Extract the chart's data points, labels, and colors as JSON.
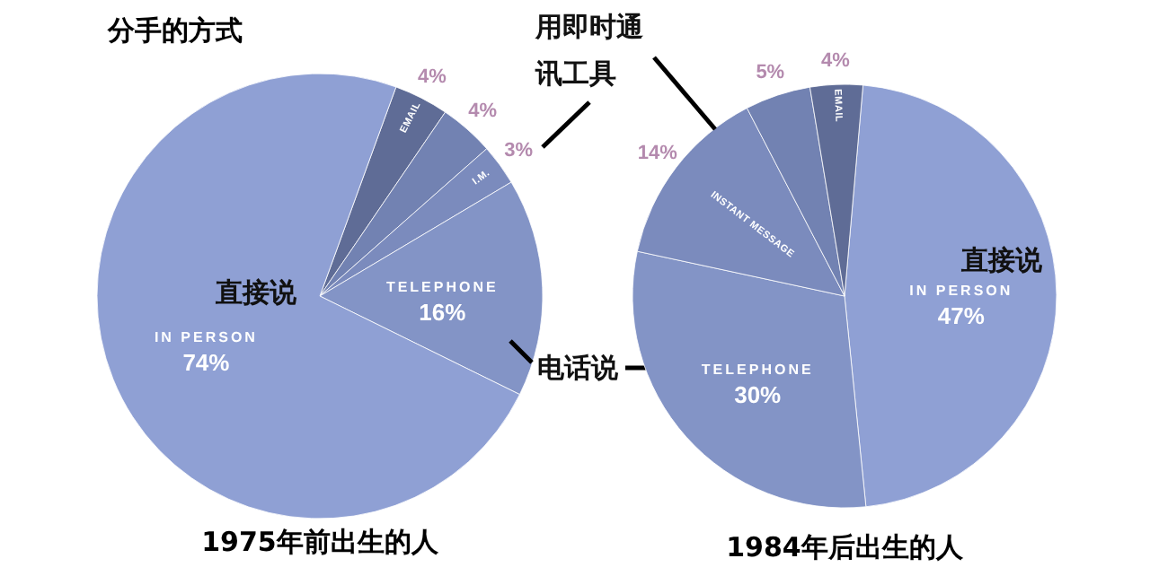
{
  "chart_data": [
    {
      "type": "pie",
      "title": "分手的方式",
      "xlabel": "1975年前出生的人",
      "categories": [
        "EMAIL",
        null,
        "I.M.",
        "TELEPHONE",
        "IN PERSON"
      ],
      "values": [
        4,
        4,
        3,
        16,
        74
      ],
      "value_labels": [
        "4%",
        "4%",
        "3%",
        "16%",
        "74%"
      ],
      "colors": [
        "#5f6c96",
        "#7282b2",
        "#7b8bbd",
        "#8394c6",
        "#8fa0d4"
      ],
      "annotations": [
        "直接说",
        "电话说"
      ]
    },
    {
      "type": "pie",
      "xlabel": "1984年后出生的人",
      "categories": [
        "IN PERSON",
        "TELEPHONE",
        "INSTANT MESSAGE",
        null,
        "EMAIL"
      ],
      "values": [
        47,
        30,
        14,
        5,
        4
      ],
      "value_labels": [
        "47%",
        "30%",
        "14%",
        "5%",
        "4%"
      ],
      "colors": [
        "#8fa0d4",
        "#8394c6",
        "#7b8bbd",
        "#7282b2",
        "#5f6c96"
      ],
      "annotations": [
        "直接说",
        "用即时通讯工具"
      ]
    }
  ]
}
